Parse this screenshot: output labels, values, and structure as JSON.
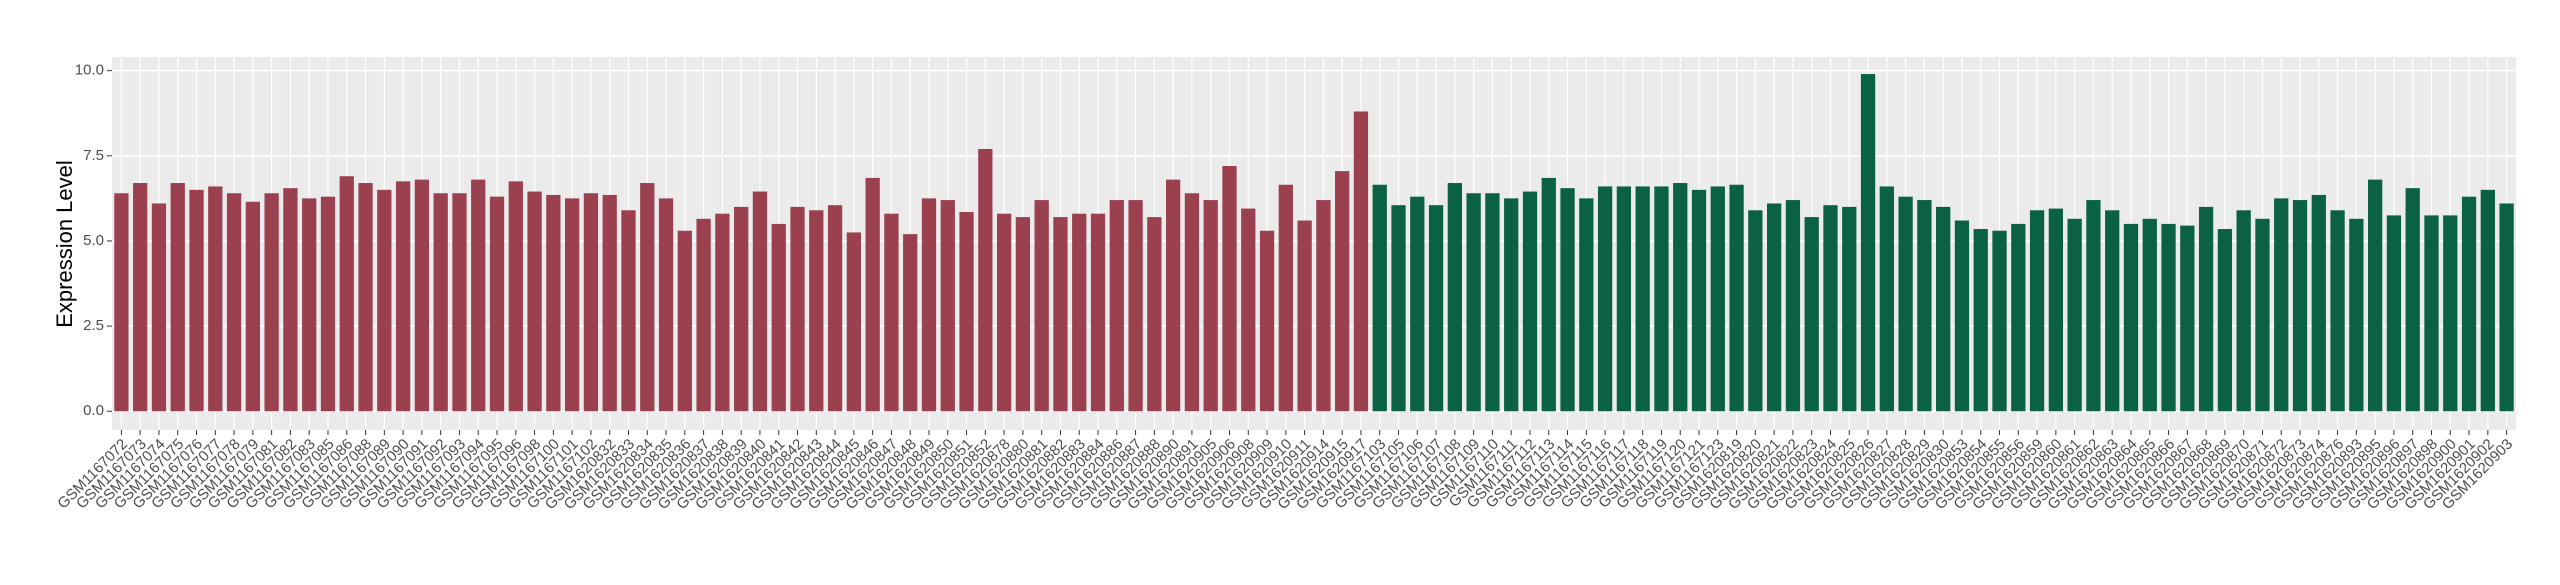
{
  "chart_data": {
    "type": "bar",
    "ylabel": "Expression Level",
    "ylim": [
      -0.55,
      10.4
    ],
    "yticks": [
      {
        "value": 0,
        "label": "0.0"
      },
      {
        "value": 2.5,
        "label": "2.5"
      },
      {
        "value": 5,
        "label": "5.0"
      },
      {
        "value": 7.5,
        "label": "7.5"
      },
      {
        "value": 10,
        "label": "10.0"
      }
    ],
    "grid": true,
    "series": [
      {
        "color": "#9b404f",
        "categories": [
          "GSM1167072",
          "GSM1167073",
          "GSM1167074",
          "GSM1167075",
          "GSM1167076",
          "GSM1167077",
          "GSM1167078",
          "GSM1167079",
          "GSM1167081",
          "GSM1167082",
          "GSM1167083",
          "GSM1167085",
          "GSM1167086",
          "GSM1167088",
          "GSM1167089",
          "GSM1167090",
          "GSM1167091",
          "GSM1167092",
          "GSM1167093",
          "GSM1167094",
          "GSM1167095",
          "GSM1167096",
          "GSM1167098",
          "GSM1167100",
          "GSM1167101",
          "GSM1167102",
          "GSM1620832",
          "GSM1620833",
          "GSM1620834",
          "GSM1620835",
          "GSM1620836",
          "GSM1620837",
          "GSM1620838",
          "GSM1620839",
          "GSM1620840",
          "GSM1620841",
          "GSM1620842",
          "GSM1620843",
          "GSM1620844",
          "GSM1620845",
          "GSM1620846",
          "GSM1620847",
          "GSM1620848",
          "GSM1620849",
          "GSM1620850",
          "GSM1620851",
          "GSM1620852",
          "GSM1620878",
          "GSM1620880",
          "GSM1620881",
          "GSM1620882",
          "GSM1620883",
          "GSM1620884",
          "GSM1620886",
          "GSM1620887",
          "GSM1620888",
          "GSM1620890",
          "GSM1620891",
          "GSM1620905",
          "GSM1620906",
          "GSM1620908",
          "GSM1620909",
          "GSM1620910",
          "GSM1620911",
          "GSM1620914",
          "GSM1620915",
          "GSM1620917"
        ],
        "values": [
          6.4,
          6.7,
          6.1,
          6.7,
          6.5,
          6.6,
          6.4,
          6.15,
          6.4,
          6.55,
          6.25,
          6.3,
          6.9,
          6.7,
          6.5,
          6.75,
          6.8,
          6.4,
          6.4,
          6.8,
          6.3,
          6.75,
          6.45,
          6.35,
          6.25,
          6.4,
          6.35,
          5.9,
          6.7,
          6.25,
          5.3,
          5.65,
          5.8,
          6.0,
          6.45,
          5.5,
          6.0,
          5.9,
          6.05,
          5.25,
          6.85,
          5.8,
          5.2,
          6.25,
          6.2,
          5.85,
          7.7,
          5.8,
          5.7,
          6.2,
          5.7,
          5.8,
          5.8,
          6.2,
          6.2,
          5.7,
          6.8,
          6.4,
          6.2,
          7.2,
          5.95,
          5.3,
          6.65,
          5.6,
          6.2,
          7.05,
          8.8
        ]
      },
      {
        "color": "#0b6243",
        "categories": [
          "GSM1167103",
          "GSM1167105",
          "GSM1167106",
          "GSM1167107",
          "GSM1167108",
          "GSM1167109",
          "GSM1167110",
          "GSM1167111",
          "GSM1167112",
          "GSM1167113",
          "GSM1167114",
          "GSM1167115",
          "GSM1167116",
          "GSM1167117",
          "GSM1167118",
          "GSM1167119",
          "GSM1167120",
          "GSM1167121",
          "GSM1167123",
          "GSM1620819",
          "GSM1620820",
          "GSM1620821",
          "GSM1620822",
          "GSM1620823",
          "GSM1620824",
          "GSM1620825",
          "GSM1620826",
          "GSM1620827",
          "GSM1620828",
          "GSM1620829",
          "GSM1620830",
          "GSM1620853",
          "GSM1620854",
          "GSM1620855",
          "GSM1620856",
          "GSM1620859",
          "GSM1620860",
          "GSM1620861",
          "GSM1620862",
          "GSM1620863",
          "GSM1620864",
          "GSM1620865",
          "GSM1620866",
          "GSM1620867",
          "GSM1620868",
          "GSM1620869",
          "GSM1620870",
          "GSM1620871",
          "GSM1620872",
          "GSM1620873",
          "GSM1620874",
          "GSM1620876",
          "GSM1620893",
          "GSM1620895",
          "GSM1620896",
          "GSM1620897",
          "GSM1620898",
          "GSM1620900",
          "GSM1620901",
          "GSM1620902",
          "GSM1620903"
        ],
        "values": [
          6.65,
          6.05,
          6.3,
          6.05,
          6.7,
          6.4,
          6.4,
          6.25,
          6.45,
          6.85,
          6.55,
          6.25,
          6.6,
          6.6,
          6.6,
          6.6,
          6.7,
          6.5,
          6.6,
          6.65,
          5.9,
          6.1,
          6.2,
          5.7,
          6.05,
          6.0,
          9.9,
          6.6,
          6.3,
          6.2,
          6.0,
          5.6,
          5.35,
          5.3,
          5.5,
          5.9,
          5.95,
          5.65,
          6.2,
          5.9,
          5.5,
          5.65,
          5.5,
          5.45,
          6.0,
          5.35,
          5.9,
          5.65,
          6.25,
          6.2,
          6.35,
          5.9,
          5.65,
          6.8,
          5.75,
          6.55,
          5.75,
          5.75,
          6.3,
          6.5,
          6.1
        ]
      }
    ]
  }
}
